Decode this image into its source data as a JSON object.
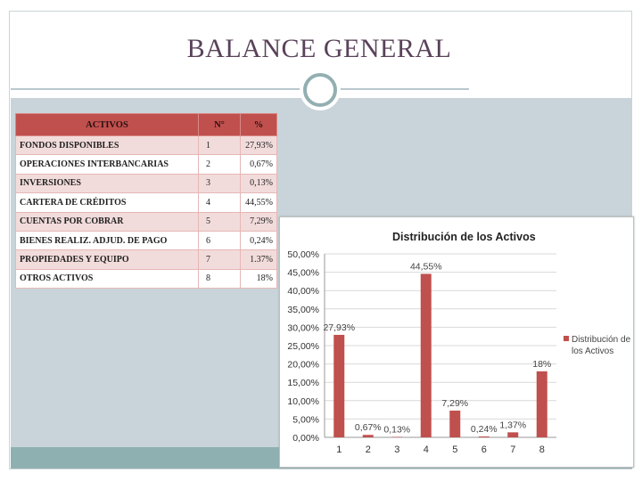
{
  "slide": {
    "title": "BALANCE GENERAL"
  },
  "table": {
    "headers": [
      "ACTIVOS",
      "N°",
      "%"
    ],
    "rows": [
      {
        "name": "FONDOS DISPONIBLES",
        "num": "1",
        "pct": "27,93%"
      },
      {
        "name": "OPERACIONES INTERBANCARIAS",
        "num": "2",
        "pct": "0,67%"
      },
      {
        "name": "INVERSIONES",
        "num": "3",
        "pct": "0,13%"
      },
      {
        "name": "CARTERA DE CRÉDITOS",
        "num": "4",
        "pct": "44,55%"
      },
      {
        "name": "CUENTAS POR COBRAR",
        "num": "5",
        "pct": "7,29%"
      },
      {
        "name": "BIENES REALIZ. ADJUD. DE PAGO",
        "num": "6",
        "pct": "0,24%"
      },
      {
        "name": "PROPIEDADES Y EQUIPO",
        "num": "7",
        "pct": "1.37%"
      },
      {
        "name": "OTROS ACTIVOS",
        "num": "8",
        "pct": "18%"
      }
    ]
  },
  "chart_data": {
    "type": "bar",
    "title": "Distribución de los Activos",
    "categories": [
      "1",
      "2",
      "3",
      "4",
      "5",
      "6",
      "7",
      "8"
    ],
    "series": [
      {
        "name": "Distribución de los Activos",
        "values": [
          27.93,
          0.67,
          0.13,
          44.55,
          7.29,
          0.24,
          1.37,
          18
        ],
        "labels": [
          "27,93%",
          "0,67%",
          "0,13%",
          "44,55%",
          "7,29%",
          "0,24%",
          "1,37%",
          "18%"
        ],
        "color": "#c0504d"
      }
    ],
    "ylim": [
      0,
      50
    ],
    "yticks": [
      "0,00%",
      "5,00%",
      "10,00%",
      "15,00%",
      "20,00%",
      "25,00%",
      "30,00%",
      "35,00%",
      "40,00%",
      "45,00%",
      "50,00%"
    ],
    "legend": {
      "position": "right",
      "label": [
        "Distribución de",
        "los Activos"
      ]
    },
    "grid": true
  }
}
